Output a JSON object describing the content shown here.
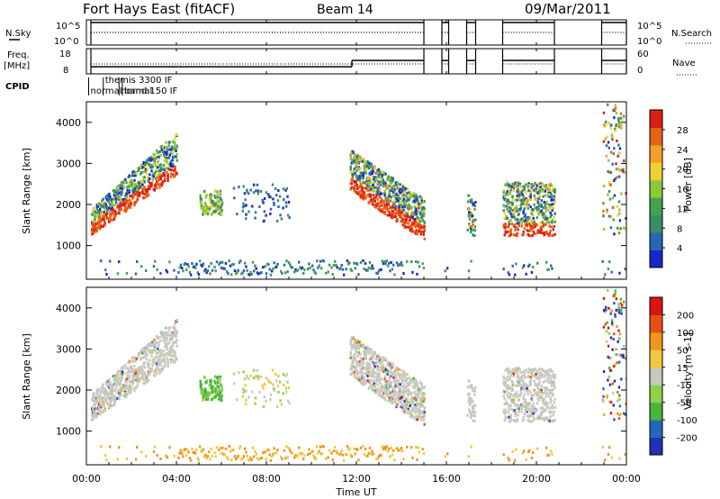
{
  "header": {
    "title": "Fort Hays East (fitACF)",
    "beam": "Beam 14",
    "date": "09/Mar/2011"
  },
  "chart_data": [
    {
      "type": "line",
      "panel": "noise",
      "left_label": "N.Sky",
      "left_ticks": [
        "10^5",
        "10^0"
      ],
      "right_label": "N.Search",
      "right_ticks": [
        "10^5",
        "10^0"
      ],
      "right_legend_line": "dotted"
    },
    {
      "type": "line",
      "panel": "frequency",
      "left_label_lines": [
        "Freq.",
        "[MHz]"
      ],
      "left_ticks": [
        "18",
        "8"
      ],
      "ylim_freq": [
        8,
        18
      ],
      "right_label": "Nave",
      "right_ticks": [
        "60",
        "0"
      ],
      "ylim_nave": [
        0,
        60
      ],
      "right_legend_line": "dotted"
    },
    {
      "type": "table",
      "panel": "cpid",
      "label": "CPID",
      "segments": [
        {
          "label": "normal",
          "start_hour": 0.1
        },
        {
          "label": "themis 3300 IF",
          "start_hour": 0.75
        },
        {
          "label": "normal",
          "start_hour": 1.45
        },
        {
          "label": "band 150 IF",
          "start_hour": 1.6
        }
      ]
    },
    {
      "type": "heatmap",
      "panel": "power",
      "ylabel": "Slant Range [km]",
      "yticks": [
        1000,
        2000,
        3000,
        4000
      ],
      "ylim": [
        180,
        4500
      ],
      "colorbar_label": "Power [dB]",
      "colorbar_ticks": [
        "4",
        "8",
        "12",
        "16",
        "20",
        "24",
        "28"
      ],
      "colorbar_range": [
        0,
        30
      ],
      "colors": [
        "#1428c8",
        "#2a64b4",
        "#3c8c64",
        "#46a050",
        "#8cc83c",
        "#f0d232",
        "#f0a028",
        "#e66414",
        "#dc1e14"
      ]
    },
    {
      "type": "heatmap",
      "panel": "velocity",
      "ylabel": "Slant Range [km]",
      "yticks": [
        1000,
        2000,
        3000,
        4000
      ],
      "ylim": [
        180,
        4500
      ],
      "colorbar_label": "Velocity [m s-1]",
      "colorbar_ticks": [
        "200",
        "100",
        "50",
        "15",
        "-15",
        "-50",
        "-100",
        "-200"
      ],
      "colors": [
        "#1e32b4",
        "#2a64be",
        "#4ab43c",
        "#8cd24a",
        "#c8c8c0",
        "#f0c83c",
        "#f0961e",
        "#e65014",
        "#dc1414"
      ]
    }
  ],
  "xaxis": {
    "label": "Time UT",
    "ticks": [
      "00:00",
      "04:00",
      "08:00",
      "12:00",
      "16:00",
      "20:00",
      "00:00"
    ],
    "xlim_hours": [
      0,
      24
    ]
  },
  "activity": {
    "gaps_hours": [
      [
        15.0,
        15.8
      ],
      [
        16.1,
        16.9
      ],
      [
        17.3,
        18.5
      ],
      [
        20.8,
        22.9
      ]
    ],
    "freq_step_hour": 11.8,
    "freq_low_mhz": 10.8,
    "freq_high_mhz": 13.3
  }
}
